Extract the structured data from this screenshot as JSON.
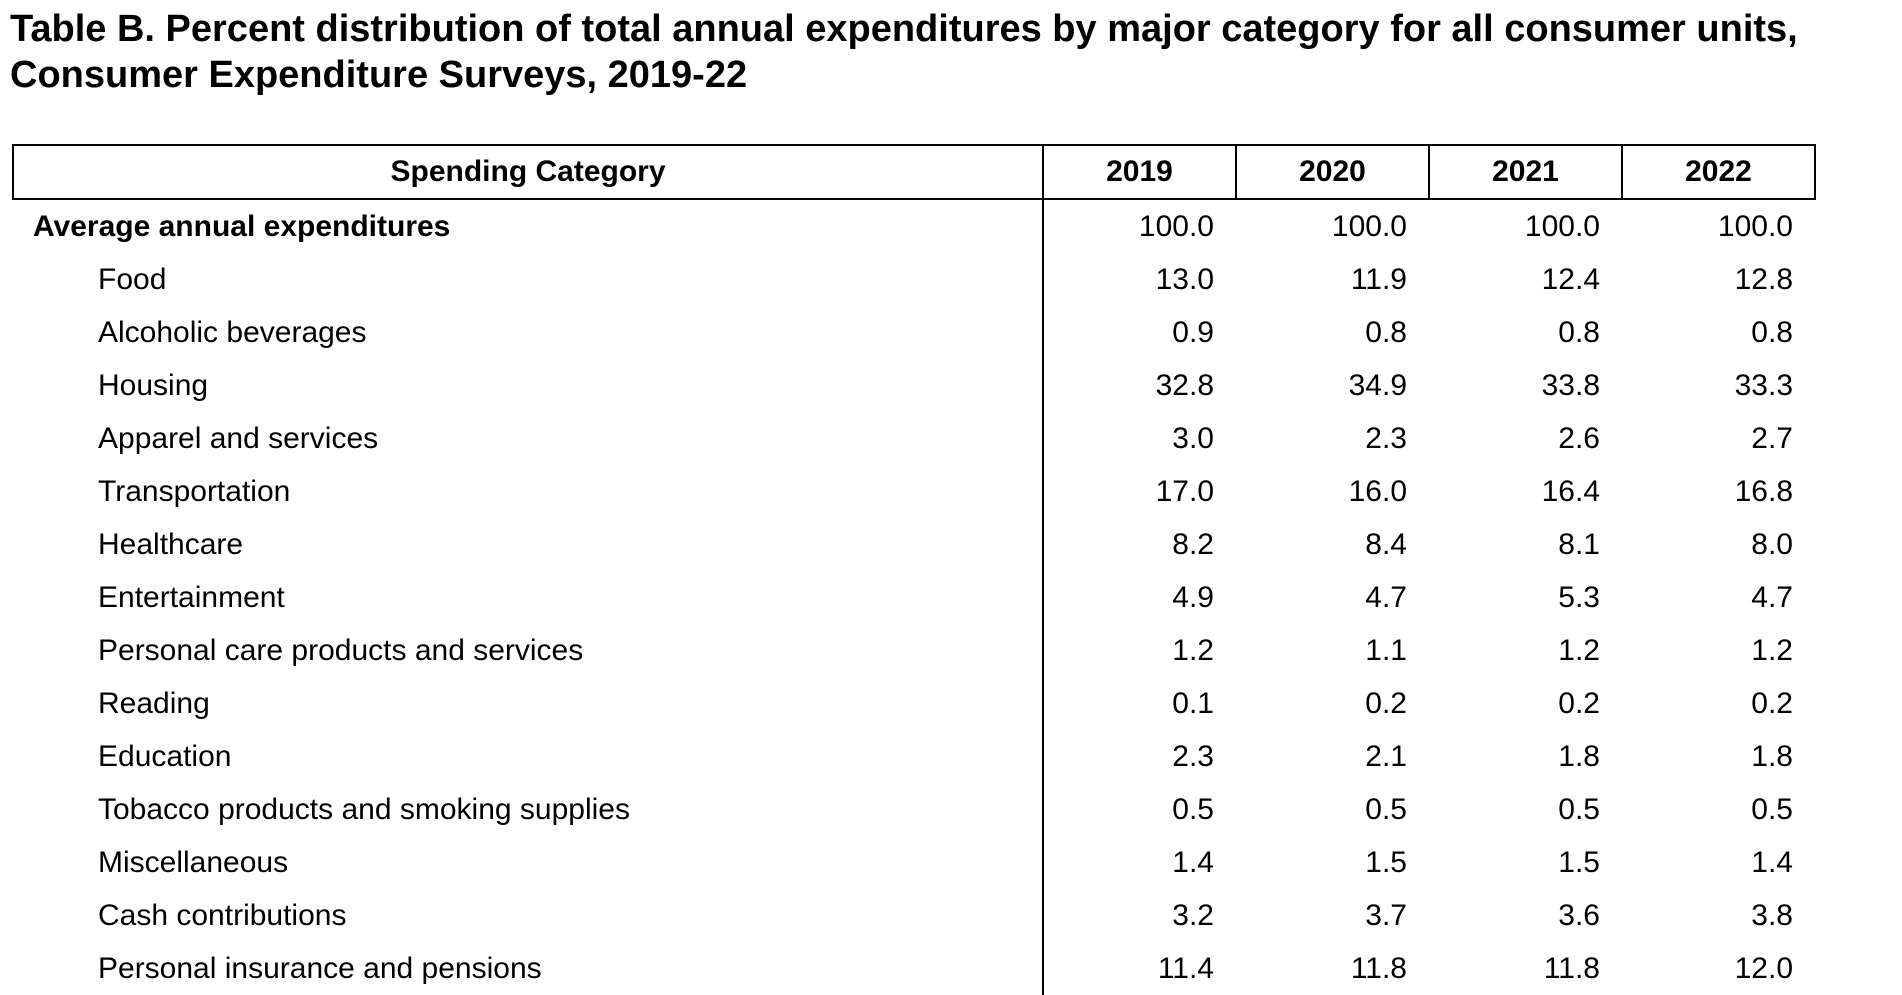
{
  "title": {
    "line1": "Table B. Percent distribution of total annual expenditures by major category for all consumer units,",
    "line2": "Consumer Expenditure Surveys, 2019-22"
  },
  "table": {
    "headers": [
      "Spending Category",
      "2019",
      "2020",
      "2021",
      "2022"
    ],
    "rows": [
      {
        "label": "Average annual expenditures",
        "level": 0,
        "values": [
          "100.0",
          "100.0",
          "100.0",
          "100.0"
        ]
      },
      {
        "label": "Food",
        "level": 1,
        "values": [
          "13.0",
          "11.9",
          "12.4",
          "12.8"
        ]
      },
      {
        "label": "Alcoholic beverages",
        "level": 1,
        "values": [
          "0.9",
          "0.8",
          "0.8",
          "0.8"
        ]
      },
      {
        "label": "Housing",
        "level": 1,
        "values": [
          "32.8",
          "34.9",
          "33.8",
          "33.3"
        ]
      },
      {
        "label": "Apparel and services",
        "level": 1,
        "values": [
          "3.0",
          "2.3",
          "2.6",
          "2.7"
        ]
      },
      {
        "label": "Transportation",
        "level": 1,
        "values": [
          "17.0",
          "16.0",
          "16.4",
          "16.8"
        ]
      },
      {
        "label": "Healthcare",
        "level": 1,
        "values": [
          "8.2",
          "8.4",
          "8.1",
          "8.0"
        ]
      },
      {
        "label": "Entertainment",
        "level": 1,
        "values": [
          "4.9",
          "4.7",
          "5.3",
          "4.7"
        ]
      },
      {
        "label": "Personal care products and services",
        "level": 1,
        "values": [
          "1.2",
          "1.1",
          "1.2",
          "1.2"
        ]
      },
      {
        "label": "Reading",
        "level": 1,
        "values": [
          "0.1",
          "0.2",
          "0.2",
          "0.2"
        ]
      },
      {
        "label": "Education",
        "level": 1,
        "values": [
          "2.3",
          "2.1",
          "1.8",
          "1.8"
        ]
      },
      {
        "label": "Tobacco products and smoking supplies",
        "level": 1,
        "values": [
          "0.5",
          "0.5",
          "0.5",
          "0.5"
        ]
      },
      {
        "label": "Miscellaneous",
        "level": 1,
        "values": [
          "1.4",
          "1.5",
          "1.5",
          "1.4"
        ]
      },
      {
        "label": "Cash contributions",
        "level": 1,
        "values": [
          "3.2",
          "3.7",
          "3.6",
          "3.8"
        ]
      },
      {
        "label": "Personal insurance and pensions",
        "level": 1,
        "values": [
          "11.4",
          "11.8",
          "11.8",
          "12.0"
        ]
      }
    ]
  }
}
